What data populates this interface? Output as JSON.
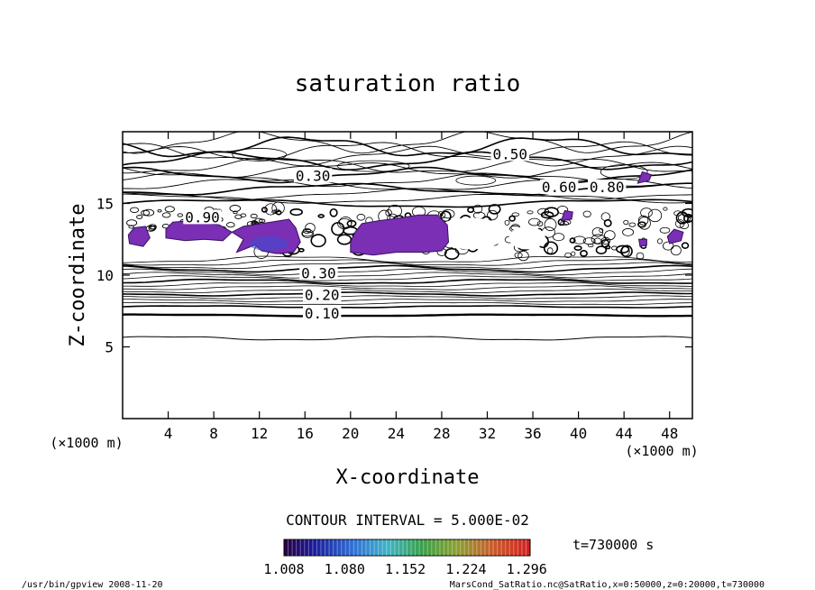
{
  "chart_data": {
    "type": "contour",
    "title": "saturation ratio",
    "xlabel": "X-coordinate",
    "ylabel": "Z-coordinate",
    "x_unit": "(×1000 m)",
    "z_unit": "(×1000 m)",
    "xlim": [
      0,
      50
    ],
    "ylim": [
      0,
      20
    ],
    "x_ticks": [
      4,
      8,
      12,
      16,
      20,
      24,
      28,
      32,
      36,
      40,
      44,
      48
    ],
    "y_ticks": [
      5,
      10,
      15
    ],
    "contour_labels": [
      {
        "text": "0.10",
        "x": 17.5,
        "z": 7.3
      },
      {
        "text": "0.20",
        "x": 17.5,
        "z": 8.6
      },
      {
        "text": "0.30",
        "x": 17.2,
        "z": 10.1
      },
      {
        "text": "0.30",
        "x": 16.7,
        "z": 16.9
      },
      {
        "text": "0.50",
        "x": 34.0,
        "z": 18.4
      },
      {
        "text": "0.60",
        "x": 38.3,
        "z": 16.1
      },
      {
        "text": "0.80",
        "x": 42.5,
        "z": 16.1
      },
      {
        "text": "0.90",
        "x": 7.0,
        "z": 14.0
      }
    ],
    "contour_interval_text": "CONTOUR INTERVAL = 5.000E-02",
    "colorbar": {
      "min": 1.008,
      "max": 1.3,
      "tick_labels": [
        "1.008",
        "1.080",
        "1.152",
        "1.224",
        "1.296"
      ]
    },
    "time_label": "t=730000  s"
  },
  "footer": {
    "left": "/usr/bin/gpview  2008-11-20",
    "right": "MarsCond_SatRatio.nc@SatRatio,x=0:50000,z=0:20000,t=730000"
  }
}
